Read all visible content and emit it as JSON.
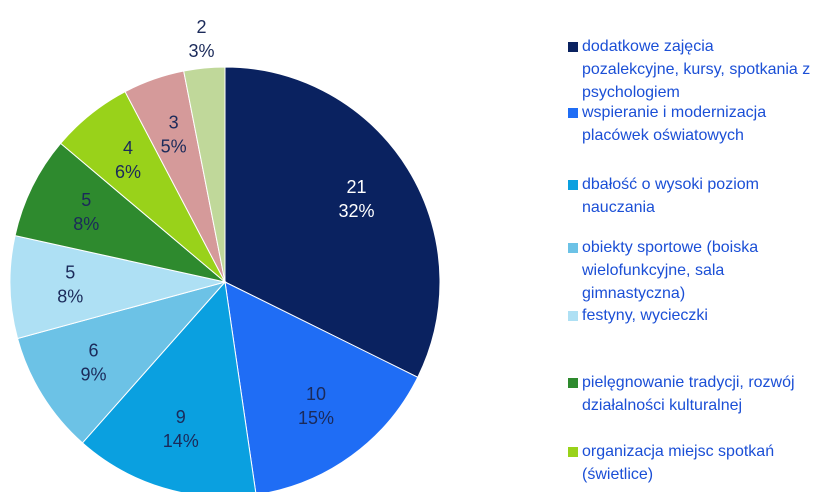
{
  "chart_data": {
    "type": "pie",
    "categories": [
      "dodatkowe zajęcia pozalekcyjne, kursy, spotkania z psychologiem",
      "wspieranie i modernizacja placówek oświatowych",
      "dbałość o wysoki poziom nauczania",
      "obiekty sportowe (boiska wielofunkcyjne, sala gimnastyczna)",
      "festyny, wycieczki",
      "pielęgnowanie tradycji, rozwój działalności kulturalnej",
      "organizacja miejsc spotkań (świetlice)",
      null,
      null
    ],
    "values": [
      21,
      10,
      9,
      6,
      5,
      5,
      4,
      3,
      2
    ],
    "percent_labels": [
      "32%",
      "15%",
      "14%",
      "9%",
      "8%",
      "8%",
      "6%",
      "5%",
      "3%"
    ],
    "colors": [
      "#0a2260",
      "#1f6df5",
      "#0aa0e0",
      "#6cc2e6",
      "#aee0f4",
      "#2e8a2e",
      "#99d21a",
      "#d59a9a",
      "#c0d89a"
    ],
    "start_angle": 0,
    "direction": "clockwise",
    "legend": "right"
  }
}
